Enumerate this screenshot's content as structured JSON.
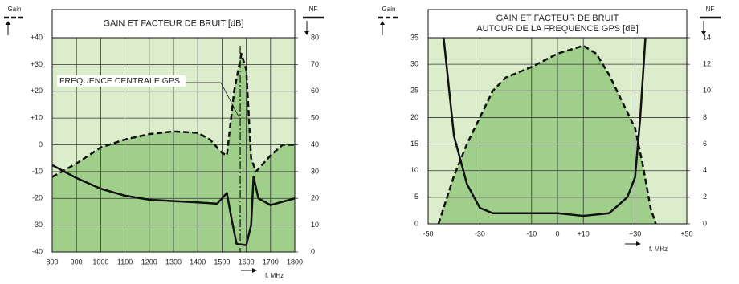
{
  "chart_data": [
    {
      "type": "line",
      "title": "GAIN ET FACTEUR DE BRUIT [dB]",
      "annotation": "FREQUENCE CENTRALE GPS",
      "center_line": 1575,
      "x_label": "f. MHz",
      "xlim": [
        800,
        1800
      ],
      "xticks": [
        800,
        900,
        1000,
        1100,
        1200,
        1300,
        1400,
        1500,
        1600,
        1700,
        1800
      ],
      "ylim": [
        -40,
        40
      ],
      "yticks": [
        -40,
        -30,
        -20,
        -10,
        0,
        {
          "value": 10,
          "label": "+10"
        },
        {
          "value": 20,
          "label": "+20"
        },
        {
          "value": 30,
          "label": "+30"
        },
        {
          "value": 40,
          "label": "+40"
        }
      ],
      "y2lim": [
        0,
        80
      ],
      "y2ticks": [
        0,
        10,
        20,
        30,
        40,
        50,
        60,
        70,
        80
      ],
      "grid": true,
      "series": [
        {
          "name": "Gain",
          "color": "#111111",
          "dash": true,
          "x": [
            800,
            900,
            1000,
            1100,
            1200,
            1300,
            1400,
            1450,
            1500,
            1520,
            1550,
            1580,
            1600,
            1620,
            1640,
            1700,
            1750,
            1800
          ],
          "values": [
            -12,
            -7,
            -1,
            2,
            4,
            5,
            4.5,
            2,
            -3,
            -4,
            20,
            34,
            28,
            -5,
            -10,
            -4,
            0,
            0
          ]
        },
        {
          "name": "NF",
          "color": "#111111",
          "dash": false,
          "axis": "y2",
          "x": [
            800,
            900,
            1000,
            1100,
            1200,
            1300,
            1400,
            1480,
            1520,
            1540,
            1560,
            1600,
            1620,
            1630,
            1650,
            1700,
            1800
          ],
          "values": [
            32.4,
            27.6,
            23.6,
            21,
            19.5,
            19,
            18.5,
            18,
            22,
            12,
            3,
            2.5,
            10,
            28,
            20,
            17.5,
            20
          ]
        }
      ]
    },
    {
      "type": "line",
      "title": [
        "GAIN ET FACTEUR DE BRUIT",
        "AUTOUR DE LA FREQUENCE GPS [dB]"
      ],
      "x_label": "f. MHz",
      "xlim": [
        -50,
        50
      ],
      "xticks": [
        -50,
        -30,
        -10,
        0,
        {
          "value": 10,
          "label": "+10"
        },
        {
          "value": 30,
          "label": "+30"
        },
        {
          "value": 50,
          "label": "+50"
        }
      ],
      "ylim": [
        0,
        35
      ],
      "yticks": [
        0,
        5,
        10,
        15,
        20,
        25,
        30,
        35
      ],
      "y2lim": [
        0,
        14
      ],
      "y2ticks": [
        0,
        2,
        4,
        6,
        8,
        10,
        12,
        14
      ],
      "grid": true,
      "series": [
        {
          "name": "Gain",
          "color": "#111111",
          "dash": true,
          "x": [
            -46,
            -40,
            -35,
            -30,
            -25,
            -20,
            -10,
            0,
            10,
            15,
            20,
            30,
            33,
            36,
            38
          ],
          "values": [
            0,
            9,
            15,
            20,
            25,
            27.5,
            29.5,
            32,
            33.5,
            32,
            28,
            18,
            11,
            3,
            0
          ]
        },
        {
          "name": "NF",
          "color": "#111111",
          "dash": false,
          "axis": "y2",
          "x": [
            -44,
            -40,
            -35,
            -30,
            -25,
            -10,
            0,
            10,
            20,
            27,
            30,
            32,
            34
          ],
          "values": [
            14,
            6.6,
            3,
            1.2,
            0.8,
            0.8,
            0.8,
            0.6,
            0.8,
            2,
            3.5,
            8,
            14
          ]
        }
      ]
    }
  ]
}
